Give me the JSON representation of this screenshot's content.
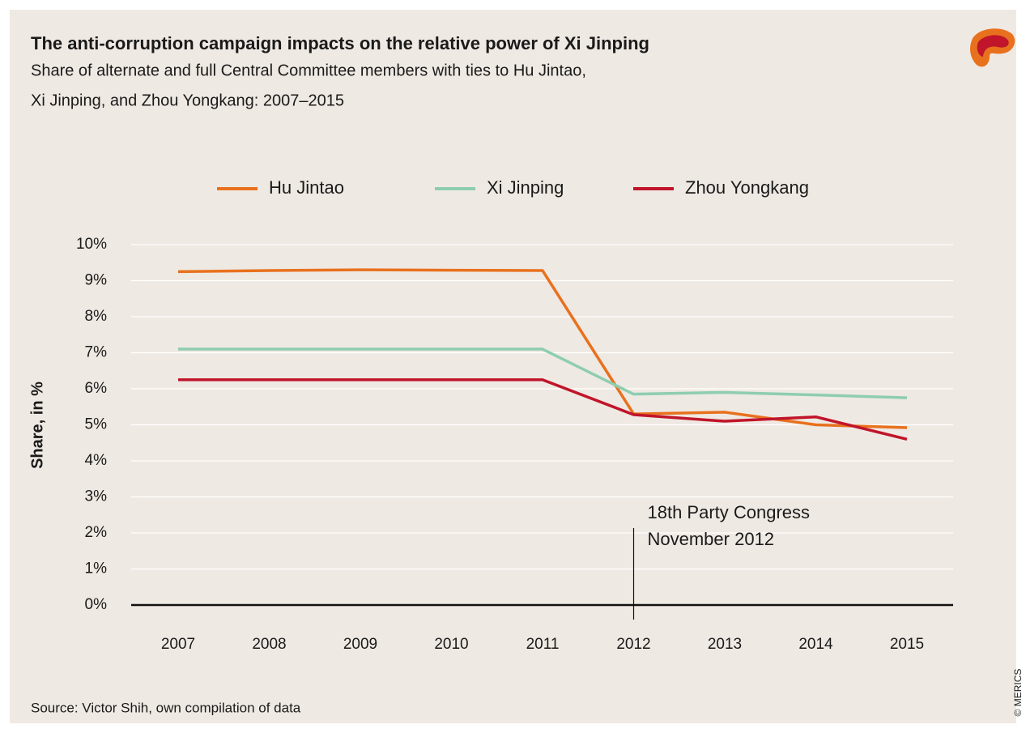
{
  "chart_data": {
    "type": "line",
    "title": "The anti-corruption campaign impacts on the relative power of Xi Jinping",
    "subtitle": [
      "Share of alternate and full Central Committee members with ties to Hu Jintao,",
      "Xi Jinping, and Zhou Yongkang: 2007–2015"
    ],
    "y_label": "Share, in %",
    "source": "Source: Victor Shih, own compilation of data",
    "credit": "© MERICS",
    "categories": [
      "2007",
      "2008",
      "2009",
      "2010",
      "2011",
      "2012",
      "2013",
      "2014",
      "2015"
    ],
    "series": [
      {
        "name": "Hu Jintao",
        "color": "#e8711e",
        "values": [
          9.25,
          9.28,
          9.3,
          9.29,
          9.28,
          5.3,
          5.35,
          5.0,
          4.92
        ]
      },
      {
        "name": "Xi Jinping",
        "color": "#8ecdb0",
        "values": [
          7.1,
          7.1,
          7.1,
          7.1,
          7.1,
          5.85,
          5.9,
          5.83,
          5.75
        ]
      },
      {
        "name": "Zhou Yongkang",
        "color": "#c0152a",
        "values": [
          6.25,
          6.25,
          6.25,
          6.25,
          6.25,
          5.28,
          5.1,
          5.22,
          4.6
        ]
      }
    ],
    "ylim": [
      0,
      10
    ],
    "yticks": [
      {
        "value": 0,
        "label": "0%"
      },
      {
        "value": 1,
        "label": "1%"
      },
      {
        "value": 2,
        "label": "2%"
      },
      {
        "value": 3,
        "label": "3%"
      },
      {
        "value": 4,
        "label": "4%"
      },
      {
        "value": 5,
        "label": "5%"
      },
      {
        "value": 6,
        "label": "6%"
      },
      {
        "value": 7,
        "label": "7%"
      },
      {
        "value": 8,
        "label": "8%"
      },
      {
        "value": 9,
        "label": "9%"
      },
      {
        "value": 10,
        "label": "10%"
      }
    ],
    "grid": true,
    "legend": "top",
    "annotation": {
      "at": "2012",
      "text": [
        "18th Party Congress",
        "November 2012"
      ]
    }
  }
}
